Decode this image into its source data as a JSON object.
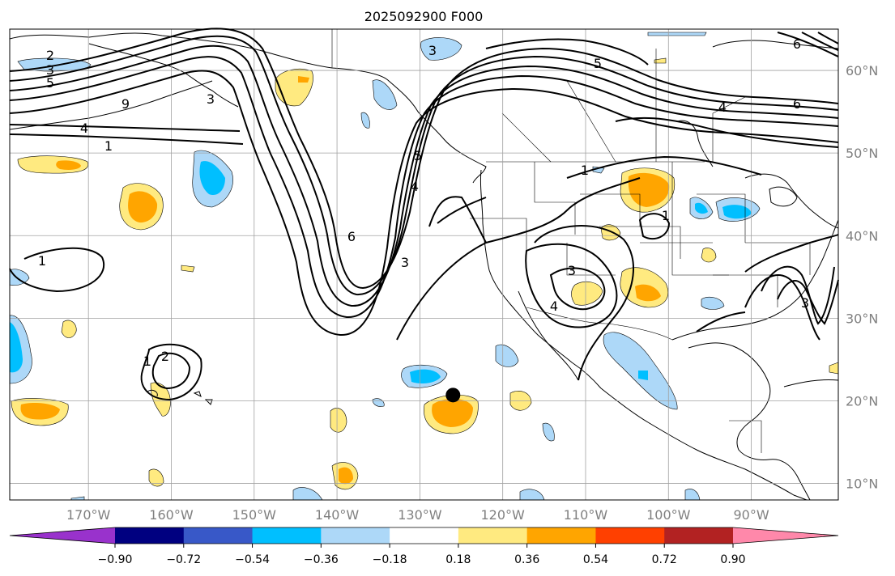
{
  "title": "2025092900 F000",
  "map": {
    "lon_labels": [
      "170°W",
      "160°W",
      "150°W",
      "140°W",
      "130°W",
      "120°W",
      "110°W",
      "100°W",
      "90°W"
    ],
    "lat_labels": [
      "60°N",
      "50°N",
      "40°N",
      "30°N",
      "20°N",
      "10°N"
    ],
    "lon_values": [
      -170,
      -160,
      -150,
      -140,
      -130,
      -120,
      -110,
      -100,
      -90
    ],
    "lat_values": [
      60,
      50,
      40,
      30,
      20,
      10
    ],
    "extent": {
      "lon_min": -179.5,
      "lon_max": -79.5,
      "lat_min": 8,
      "lat_max": 65
    }
  },
  "contour_labels": [
    "2",
    "3",
    "5",
    "9",
    "4",
    "1",
    "3",
    "1",
    "5",
    "6",
    "4",
    "5",
    "6",
    "4",
    "1",
    "1",
    "3",
    "2",
    "1",
    "3",
    "4",
    "3",
    "6",
    "3"
  ],
  "marker": {
    "name": "location-marker",
    "lon": -126,
    "lat": 20.7
  },
  "colorbar": {
    "tick_labels": [
      "−0.90",
      "−0.72",
      "−0.54",
      "−0.36",
      "−0.18",
      "0.18",
      "0.36",
      "0.54",
      "0.72",
      "0.90"
    ],
    "colors": [
      "#9932cc",
      "#000080",
      "#3858c8",
      "#00bfff",
      "#add8f8",
      "#ffffff",
      "#ffea80",
      "#ffa500",
      "#ff4000",
      "#b22222",
      "#ff88aa"
    ]
  }
}
